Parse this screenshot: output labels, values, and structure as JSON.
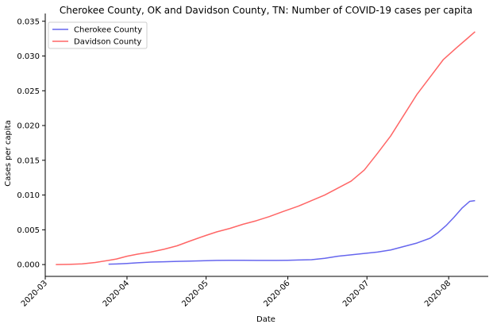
{
  "chart_data": {
    "type": "line",
    "title": "Cherokee County, OK and Davidson County, TN: Number of COVID-19 cases per capita",
    "xlabel": "Date",
    "ylabel": "Cases per capita",
    "xlim": [
      "2020-03-01",
      "2020-08-16"
    ],
    "ylim": [
      -0.0017,
      0.0352
    ],
    "grid": false,
    "legend_position": "top-left",
    "x_ticks": [
      "2020-03-01",
      "2020-04-01",
      "2020-05-01",
      "2020-06-01",
      "2020-07-01",
      "2020-08-01"
    ],
    "x_tick_labels": [
      "2020-03",
      "2020-04",
      "2020-05",
      "2020-06",
      "2020-07",
      "2020-08"
    ],
    "y_ticks": [
      0.0,
      0.005,
      0.01,
      0.015,
      0.02,
      0.025,
      0.03,
      0.035
    ],
    "y_tick_labels": [
      "0.000",
      "0.005",
      "0.010",
      "0.015",
      "0.020",
      "0.025",
      "0.030",
      "0.035"
    ],
    "series": [
      {
        "name": "Cherokee County",
        "color": "#6666ee",
        "points": [
          [
            "2020-03-25",
            5e-05
          ],
          [
            "2020-03-28",
            8e-05
          ],
          [
            "2020-04-01",
            0.00015
          ],
          [
            "2020-04-05",
            0.00025
          ],
          [
            "2020-04-10",
            0.00035
          ],
          [
            "2020-04-15",
            0.0004
          ],
          [
            "2020-04-20",
            0.00045
          ],
          [
            "2020-04-25",
            0.0005
          ],
          [
            "2020-05-01",
            0.00055
          ],
          [
            "2020-05-05",
            0.0006
          ],
          [
            "2020-05-10",
            0.00062
          ],
          [
            "2020-05-15",
            0.00062
          ],
          [
            "2020-05-20",
            0.0006
          ],
          [
            "2020-05-25",
            0.0006
          ],
          [
            "2020-05-28",
            0.0006
          ],
          [
            "2020-06-01",
            0.00062
          ],
          [
            "2020-06-05",
            0.00065
          ],
          [
            "2020-06-10",
            0.0007
          ],
          [
            "2020-06-15",
            0.0009
          ],
          [
            "2020-06-20",
            0.0012
          ],
          [
            "2020-06-25",
            0.0014
          ],
          [
            "2020-06-30",
            0.0016
          ],
          [
            "2020-07-05",
            0.0018
          ],
          [
            "2020-07-10",
            0.0021
          ],
          [
            "2020-07-15",
            0.0026
          ],
          [
            "2020-07-20",
            0.0031
          ],
          [
            "2020-07-25",
            0.0038
          ],
          [
            "2020-07-28",
            0.0046
          ],
          [
            "2020-07-31",
            0.0056
          ],
          [
            "2020-08-03",
            0.0068
          ],
          [
            "2020-08-06",
            0.0081
          ],
          [
            "2020-08-09",
            0.0091
          ],
          [
            "2020-08-11",
            0.0092
          ]
        ]
      },
      {
        "name": "Davidson County",
        "color": "#ff6666",
        "points": [
          [
            "2020-03-05",
            0.0
          ],
          [
            "2020-03-10",
            3e-05
          ],
          [
            "2020-03-15",
            0.0001
          ],
          [
            "2020-03-20",
            0.0003
          ],
          [
            "2020-03-25",
            0.0006
          ],
          [
            "2020-03-28",
            0.0008
          ],
          [
            "2020-04-01",
            0.0012
          ],
          [
            "2020-04-05",
            0.0015
          ],
          [
            "2020-04-10",
            0.0018
          ],
          [
            "2020-04-15",
            0.0022
          ],
          [
            "2020-04-20",
            0.0027
          ],
          [
            "2020-04-25",
            0.0034
          ],
          [
            "2020-05-01",
            0.0042
          ],
          [
            "2020-05-05",
            0.0047
          ],
          [
            "2020-05-10",
            0.0052
          ],
          [
            "2020-05-15",
            0.0058
          ],
          [
            "2020-05-20",
            0.0063
          ],
          [
            "2020-05-25",
            0.0069
          ],
          [
            "2020-05-30",
            0.0076
          ],
          [
            "2020-06-05",
            0.0084
          ],
          [
            "2020-06-10",
            0.0092
          ],
          [
            "2020-06-15",
            0.01
          ],
          [
            "2020-06-20",
            0.011
          ],
          [
            "2020-06-25",
            0.012
          ],
          [
            "2020-06-30",
            0.0136
          ],
          [
            "2020-07-05",
            0.016
          ],
          [
            "2020-07-10",
            0.0185
          ],
          [
            "2020-07-15",
            0.0215
          ],
          [
            "2020-07-20",
            0.0245
          ],
          [
            "2020-07-25",
            0.027
          ],
          [
            "2020-07-30",
            0.0295
          ],
          [
            "2020-08-04",
            0.0312
          ],
          [
            "2020-08-08",
            0.0325
          ],
          [
            "2020-08-11",
            0.0335
          ]
        ]
      }
    ]
  }
}
